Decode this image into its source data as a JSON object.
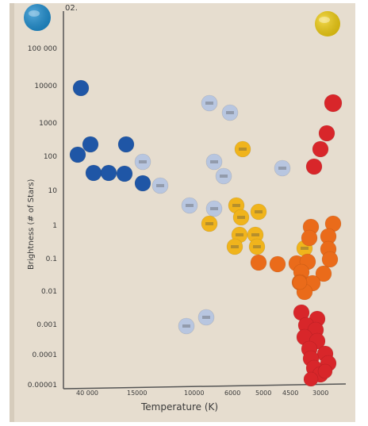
{
  "photo": {
    "partial_corner_text": "02.",
    "poster_color": "#e6ddcf",
    "ink_color": "#3a3a3a"
  },
  "axis": {
    "ylabel": "Brightness (# of Stars)",
    "xlabel": "Temperature (K)"
  },
  "y_ticks": [
    "100 000",
    "10000",
    "1000",
    "100",
    "10",
    "1",
    "0.1",
    "0.01",
    "0.001",
    "0.0001",
    "0.00001"
  ],
  "x_ticks": [
    "40 000",
    "15000",
    "10000",
    "6000",
    "5000",
    "4500",
    "3000"
  ],
  "pins": [
    {
      "name": "blue-pushpin",
      "color": "#1f8fd1"
    },
    {
      "name": "yellow-pushpin",
      "color": "#f2cf12"
    }
  ],
  "dot_colors": {
    "blue": "#1f56a6",
    "lavender": "#b8c6e0",
    "yellow": "#f0b41c",
    "orange": "#ea6b1a",
    "red": "#d8262a"
  }
}
